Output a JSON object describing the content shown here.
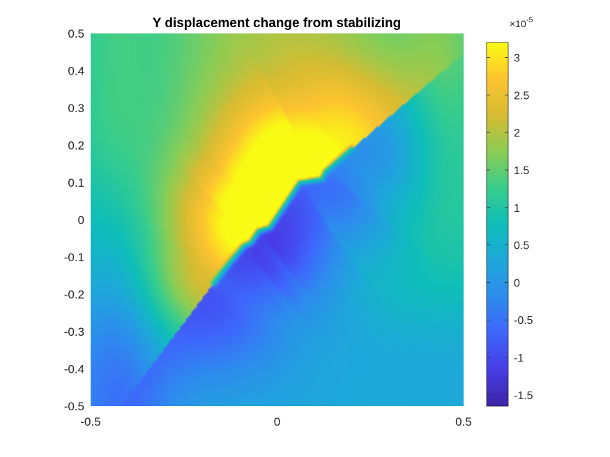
{
  "chart_data": {
    "type": "heatmap",
    "title": "Y displacement change from stabilizing",
    "xlabel": "",
    "ylabel": "",
    "xlim": [
      -0.5,
      0.5
    ],
    "ylim": [
      -0.5,
      0.5
    ],
    "x_ticks": [
      "-0.5",
      "0",
      "0.5"
    ],
    "y_ticks": [
      "0.5",
      "0.4",
      "0.3",
      "0.2",
      "0.1",
      "0",
      "-0.1",
      "-0.2",
      "-0.3",
      "-0.4",
      "-0.5"
    ],
    "colorbar": {
      "multiplier_base": "×10",
      "multiplier_exp": "-5",
      "ticks": [
        "3",
        "2.5",
        "2",
        "1.5",
        "1",
        "0.5",
        "0",
        "-0.5",
        "-1",
        "-1.5"
      ],
      "clim": [
        -1.65,
        3.2
      ],
      "colormap": "parula"
    },
    "crack": {
      "polyline": [
        [
          -0.17,
          -0.17
        ],
        [
          -0.14,
          -0.13
        ],
        [
          -0.09,
          -0.07
        ],
        [
          -0.07,
          -0.06
        ],
        [
          -0.05,
          -0.03
        ],
        [
          -0.02,
          -0.02
        ],
        [
          0.02,
          0.04
        ],
        [
          0.06,
          0.1
        ],
        [
          0.12,
          0.11
        ],
        [
          0.13,
          0.13
        ],
        [
          0.2,
          0.19
        ]
      ]
    },
    "field_samples": [
      {
        "x": -0.5,
        "y": 0.5,
        "value": 1.0
      },
      {
        "x": 0.0,
        "y": 0.5,
        "value": 2.0
      },
      {
        "x": 0.5,
        "y": 0.5,
        "value": 1.7
      },
      {
        "x": 0.0,
        "y": 0.0,
        "value": 3.2
      },
      {
        "x": -0.1,
        "y": 0.25,
        "value": 2.5
      },
      {
        "x": 0.05,
        "y": -0.05,
        "value": -1.65
      },
      {
        "x": -0.4,
        "y": -0.2,
        "value": -0.5
      },
      {
        "x": 0.4,
        "y": 0.0,
        "value": 1.0
      },
      {
        "x": 0.0,
        "y": -0.5,
        "value": 0.3
      },
      {
        "x": 0.5,
        "y": -0.5,
        "value": 0.3
      }
    ]
  }
}
